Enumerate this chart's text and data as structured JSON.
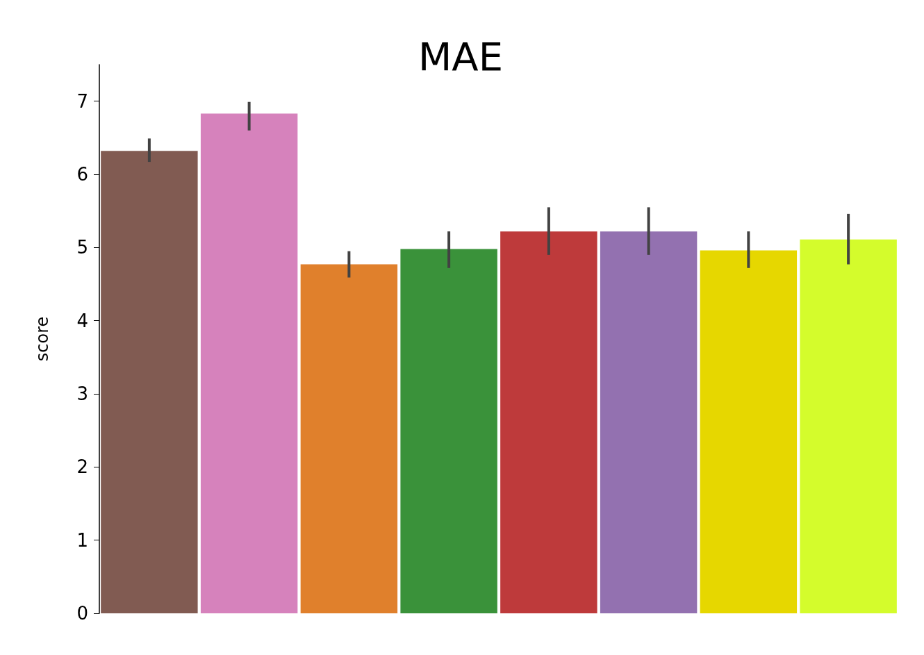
{
  "chart_data": {
    "type": "bar",
    "title": "MAE",
    "ylabel": "score",
    "categories": [
      null,
      null,
      null,
      null,
      null,
      null,
      null,
      null
    ],
    "values": [
      6.32,
      6.83,
      4.77,
      4.98,
      5.22,
      5.22,
      4.96,
      5.11
    ],
    "colors": [
      "#815b52",
      "#d682bc",
      "#e0802c",
      "#3a923a",
      "#be3a3b",
      "#9371b0",
      "#e6d700",
      "#d4fc2c"
    ],
    "errors": [
      [
        6.17,
        6.49
      ],
      [
        6.6,
        6.99
      ],
      [
        4.59,
        4.95
      ],
      [
        4.72,
        5.22
      ],
      [
        4.9,
        5.55
      ],
      [
        4.9,
        5.55
      ],
      [
        4.72,
        5.22
      ],
      [
        4.77,
        5.46
      ]
    ],
    "ylim": [
      0,
      7.5
    ],
    "yticks": [
      0,
      1,
      2,
      3,
      4,
      5,
      6,
      7
    ],
    "grid": false
  }
}
